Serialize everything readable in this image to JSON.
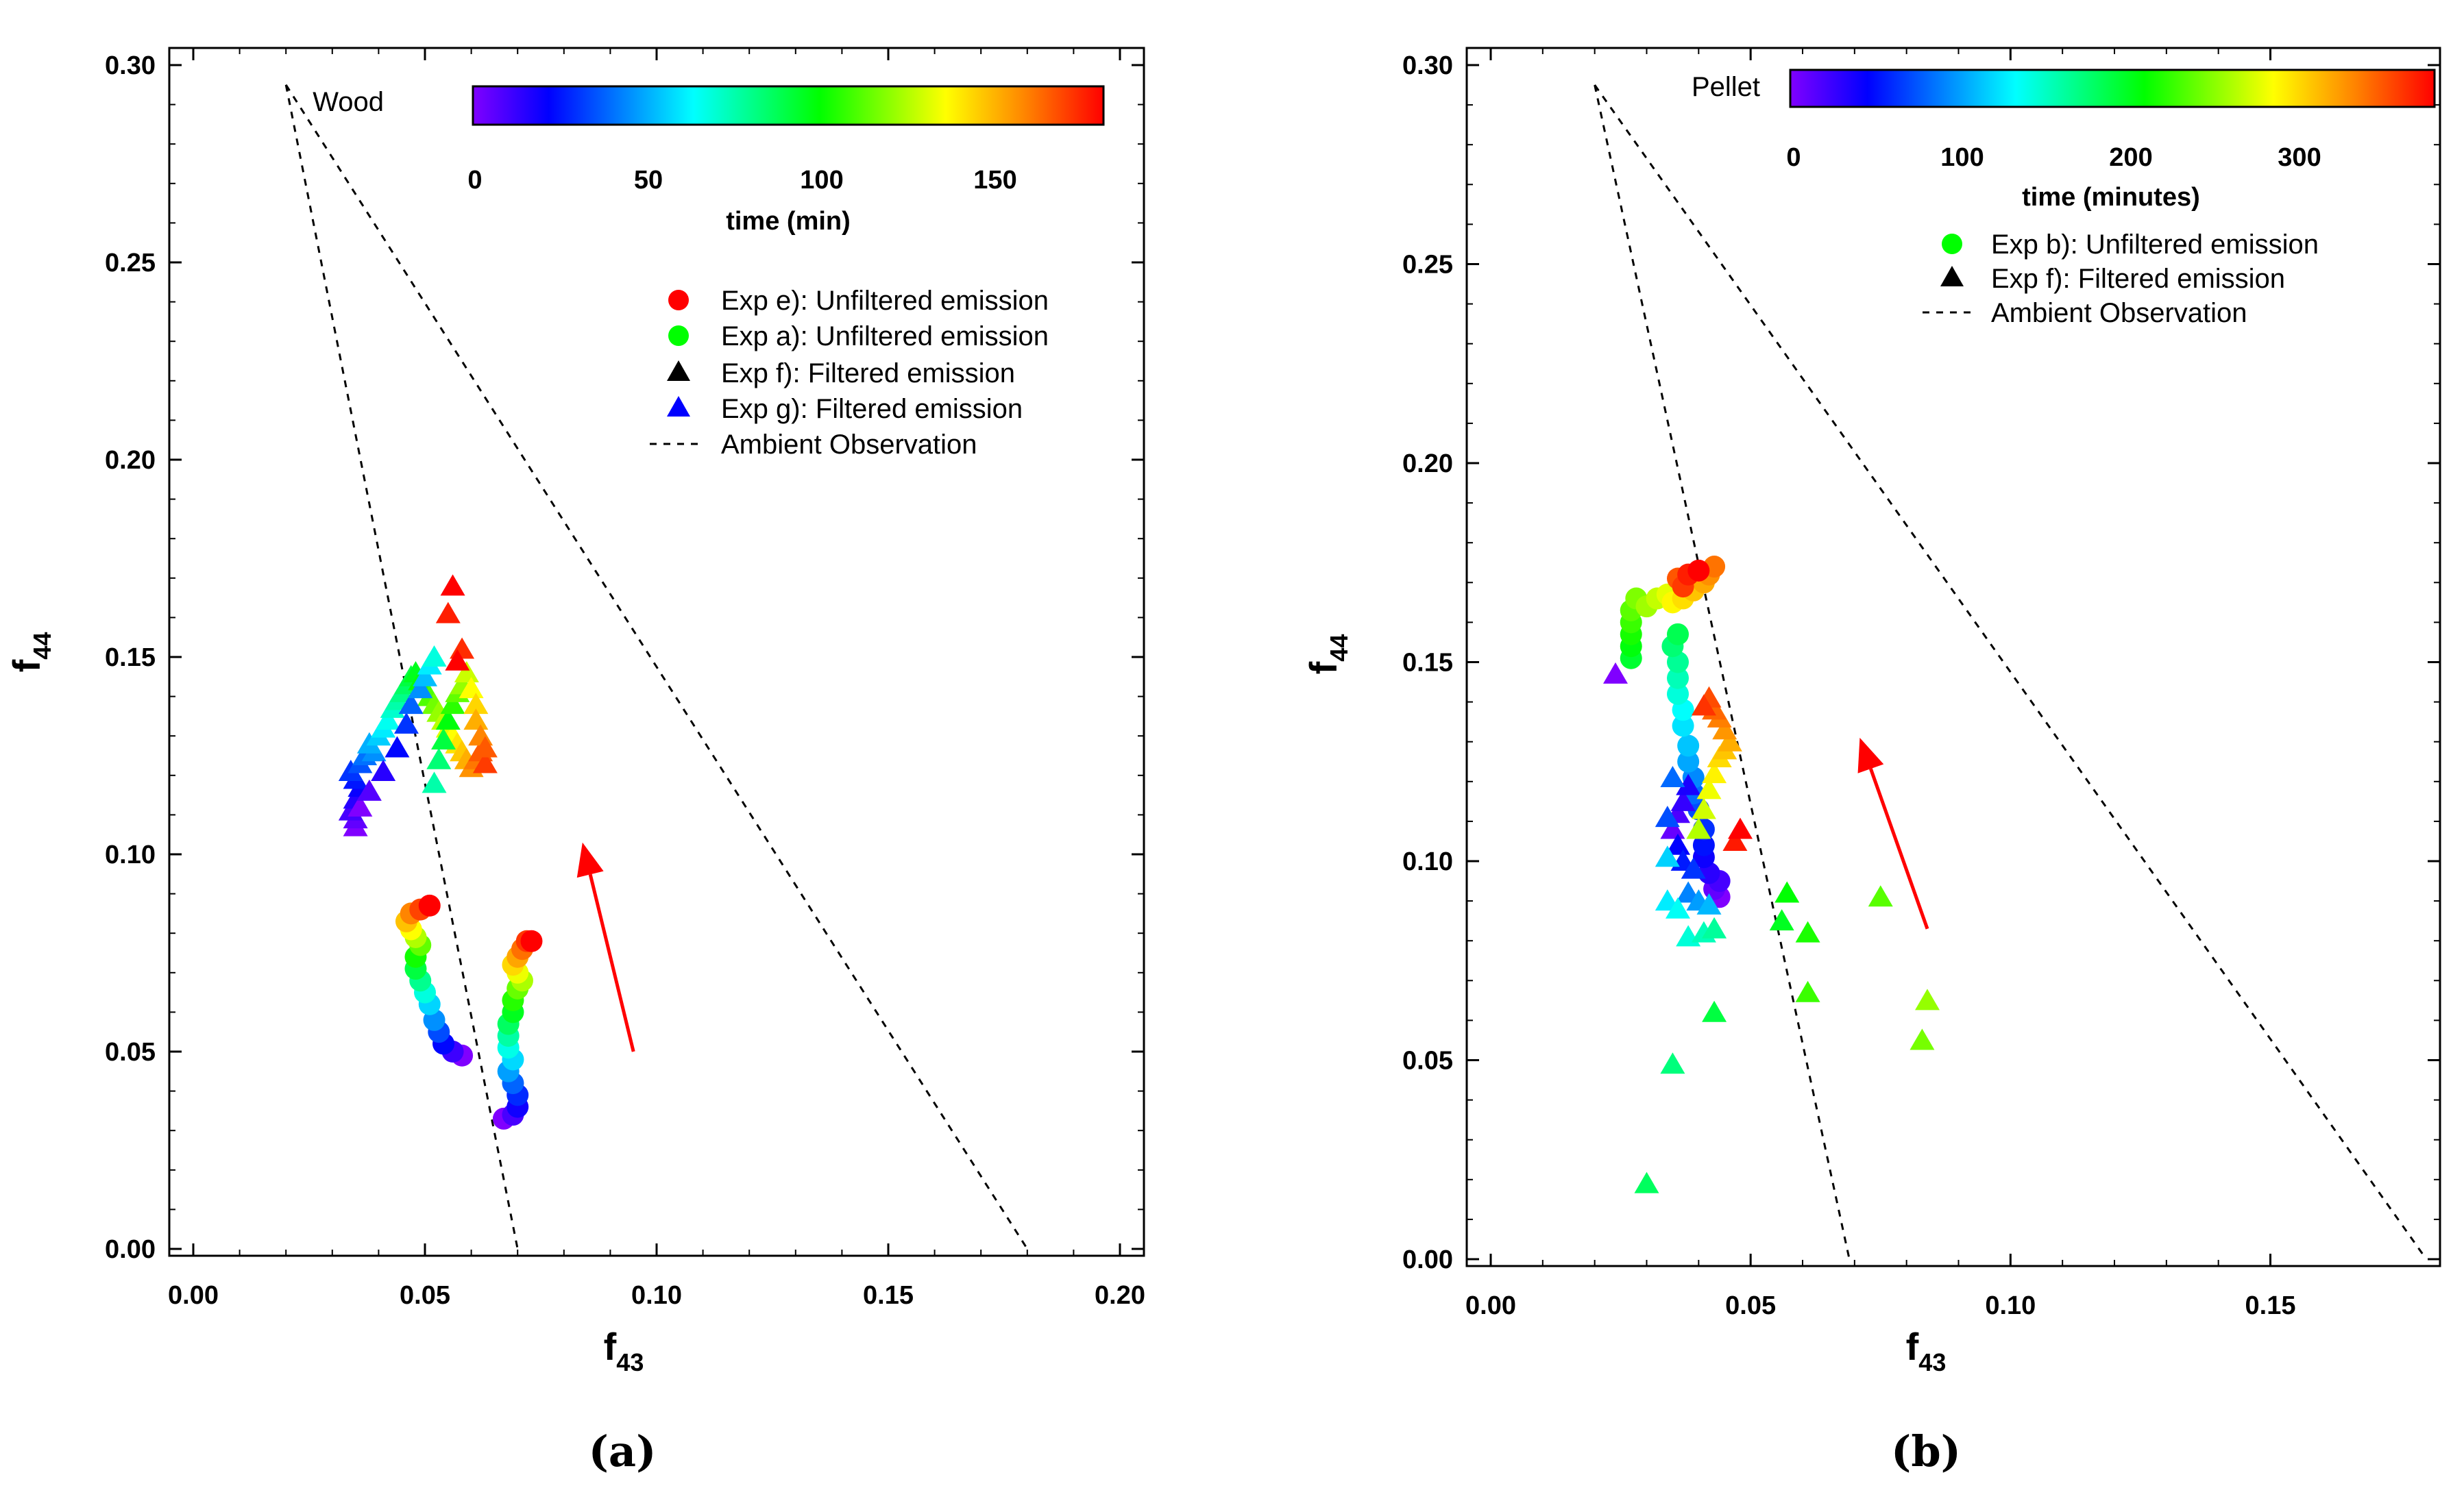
{
  "chart_data": [
    {
      "panel_label": "(a)",
      "type": "scatter",
      "name": "Wood",
      "xlabel": {
        "main": "f",
        "sub": "43"
      },
      "ylabel": {
        "main": "f",
        "sub": "44"
      },
      "xlim": [
        0.0,
        0.2
      ],
      "ylim": [
        0.0,
        0.3
      ],
      "xticks": [
        "0.00",
        "0.05",
        "0.10",
        "0.15",
        "0.20"
      ],
      "yticks": [
        "0.00",
        "0.05",
        "0.10",
        "0.15",
        "0.20",
        "0.25",
        "0.30"
      ],
      "colorbar": {
        "title": "Wood",
        "label": "time (min)",
        "range": [
          0,
          180
        ],
        "ticks": [
          "0",
          "50",
          "100",
          "150"
        ]
      },
      "legend": [
        {
          "label": "Exp e): Unfiltered emission",
          "marker": "circle",
          "color": "#ff0000"
        },
        {
          "label": "Exp a): Unfiltered emission",
          "marker": "circle",
          "color": "#00ff00"
        },
        {
          "label": "Exp f): Filtered emission",
          "marker": "triangle",
          "color": "#000000"
        },
        {
          "label": "Exp g): Filtered emission",
          "marker": "triangle",
          "color": "#0000ff"
        },
        {
          "label": "Ambient Observation",
          "marker": "dash",
          "color": "#000000"
        }
      ],
      "ambient_lines": [
        [
          [
            0.02,
            0.295
          ],
          [
            0.07,
            0.0
          ]
        ],
        [
          [
            0.02,
            0.295
          ],
          [
            0.18,
            0.0
          ]
        ]
      ],
      "arrow": {
        "from": [
          0.095,
          0.05
        ],
        "to": [
          0.084,
          0.103
        ],
        "color": "#ff0000"
      },
      "series": [
        {
          "name": "Exp e)",
          "marker": "circle",
          "points": [
            [
              0.058,
              0.049
            ],
            [
              0.056,
              0.05
            ],
            [
              0.054,
              0.052
            ],
            [
              0.053,
              0.055
            ],
            [
              0.052,
              0.058
            ],
            [
              0.051,
              0.062
            ],
            [
              0.05,
              0.065
            ],
            [
              0.049,
              0.068
            ],
            [
              0.048,
              0.071
            ],
            [
              0.048,
              0.074
            ],
            [
              0.049,
              0.077
            ],
            [
              0.048,
              0.079
            ],
            [
              0.047,
              0.081
            ],
            [
              0.046,
              0.083
            ],
            [
              0.047,
              0.085
            ],
            [
              0.049,
              0.086
            ],
            [
              0.051,
              0.087
            ]
          ]
        },
        {
          "name": "Exp a)",
          "marker": "circle",
          "points": [
            [
              0.067,
              0.033
            ],
            [
              0.069,
              0.034
            ],
            [
              0.07,
              0.036
            ],
            [
              0.07,
              0.039
            ],
            [
              0.069,
              0.042
            ],
            [
              0.068,
              0.045
            ],
            [
              0.069,
              0.048
            ],
            [
              0.068,
              0.051
            ],
            [
              0.068,
              0.054
            ],
            [
              0.068,
              0.057
            ],
            [
              0.069,
              0.06
            ],
            [
              0.069,
              0.063
            ],
            [
              0.07,
              0.066
            ],
            [
              0.071,
              0.068
            ],
            [
              0.07,
              0.07
            ],
            [
              0.069,
              0.072
            ],
            [
              0.07,
              0.074
            ],
            [
              0.071,
              0.076
            ],
            [
              0.072,
              0.078
            ],
            [
              0.073,
              0.078
            ]
          ]
        },
        {
          "name": "Exp f)",
          "marker": "triangle",
          "points": [
            [
              0.035,
              0.107
            ],
            [
              0.035,
              0.109
            ],
            [
              0.034,
              0.111
            ],
            [
              0.035,
              0.114
            ],
            [
              0.036,
              0.117
            ],
            [
              0.035,
              0.119
            ],
            [
              0.034,
              0.121
            ],
            [
              0.036,
              0.123
            ],
            [
              0.037,
              0.125
            ],
            [
              0.039,
              0.126
            ],
            [
              0.038,
              0.128
            ],
            [
              0.04,
              0.13
            ],
            [
              0.041,
              0.132
            ],
            [
              0.042,
              0.134
            ],
            [
              0.043,
              0.137
            ],
            [
              0.044,
              0.139
            ],
            [
              0.045,
              0.141
            ],
            [
              0.046,
              0.143
            ],
            [
              0.047,
              0.145
            ],
            [
              0.048,
              0.146
            ],
            [
              0.049,
              0.144
            ],
            [
              0.05,
              0.142
            ],
            [
              0.051,
              0.14
            ],
            [
              0.052,
              0.138
            ],
            [
              0.053,
              0.136
            ],
            [
              0.054,
              0.134
            ],
            [
              0.055,
              0.132
            ],
            [
              0.056,
              0.13
            ],
            [
              0.057,
              0.128
            ],
            [
              0.058,
              0.126
            ],
            [
              0.059,
              0.124
            ],
            [
              0.06,
              0.122
            ],
            [
              0.061,
              0.124
            ],
            [
              0.062,
              0.126
            ],
            [
              0.063,
              0.123
            ],
            [
              0.055,
              0.161
            ],
            [
              0.056,
              0.168
            ]
          ]
        },
        {
          "name": "Exp g)",
          "marker": "triangle",
          "points": [
            [
              0.036,
              0.112
            ],
            [
              0.038,
              0.116
            ],
            [
              0.041,
              0.121
            ],
            [
              0.044,
              0.127
            ],
            [
              0.046,
              0.133
            ],
            [
              0.047,
              0.138
            ],
            [
              0.049,
              0.142
            ],
            [
              0.05,
              0.145
            ],
            [
              0.051,
              0.148
            ],
            [
              0.052,
              0.15
            ],
            [
              0.052,
              0.118
            ],
            [
              0.053,
              0.124
            ],
            [
              0.054,
              0.129
            ],
            [
              0.055,
              0.134
            ],
            [
              0.056,
              0.138
            ],
            [
              0.057,
              0.141
            ],
            [
              0.058,
              0.143
            ],
            [
              0.059,
              0.146
            ],
            [
              0.06,
              0.142
            ],
            [
              0.061,
              0.138
            ],
            [
              0.061,
              0.134
            ],
            [
              0.062,
              0.13
            ],
            [
              0.063,
              0.127
            ],
            [
              0.058,
              0.152
            ],
            [
              0.057,
              0.149
            ]
          ]
        }
      ]
    },
    {
      "panel_label": "(b)",
      "type": "scatter",
      "name": "Pellet",
      "xlabel": {
        "main": "f",
        "sub": "43"
      },
      "ylabel": {
        "main": "f",
        "sub": "44"
      },
      "xlim": [
        0.0,
        0.18
      ],
      "ylim": [
        0.0,
        0.3
      ],
      "xticks": [
        "0.00",
        "0.05",
        "0.10",
        "0.15"
      ],
      "yticks": [
        "0.00",
        "0.05",
        "0.10",
        "0.15",
        "0.20",
        "0.25",
        "0.30"
      ],
      "colorbar": {
        "title": "Pellet",
        "label": "time (minutes)",
        "range": [
          0,
          380
        ],
        "ticks": [
          "0",
          "100",
          "200",
          "300"
        ]
      },
      "legend": [
        {
          "label": "Exp b): Unfiltered emission",
          "marker": "circle",
          "color": "#00ff00"
        },
        {
          "label": "Exp f): Filtered emission",
          "marker": "triangle",
          "color": "#000000"
        },
        {
          "label": "Ambient Observation",
          "marker": "dash",
          "color": "#000000"
        }
      ],
      "ambient_lines": [
        [
          [
            0.02,
            0.295
          ],
          [
            0.069,
            0.0
          ]
        ],
        [
          [
            0.02,
            0.295
          ],
          [
            0.18,
            0.0
          ]
        ]
      ],
      "arrow": {
        "from": [
          0.084,
          0.083
        ],
        "to": [
          0.071,
          0.131
        ],
        "color": "#ff0000"
      },
      "series": [
        {
          "name": "Exp b)",
          "marker": "circle",
          "points": [
            [
              0.044,
              0.091
            ],
            [
              0.043,
              0.093
            ],
            [
              0.044,
              0.095
            ],
            [
              0.042,
              0.097
            ],
            [
              0.041,
              0.101
            ],
            [
              0.041,
              0.104
            ],
            [
              0.041,
              0.108
            ],
            [
              0.04,
              0.113
            ],
            [
              0.039,
              0.117
            ],
            [
              0.039,
              0.121
            ],
            [
              0.038,
              0.125
            ],
            [
              0.038,
              0.129
            ],
            [
              0.037,
              0.134
            ],
            [
              0.037,
              0.138
            ],
            [
              0.036,
              0.142
            ],
            [
              0.036,
              0.146
            ],
            [
              0.036,
              0.15
            ],
            [
              0.035,
              0.154
            ],
            [
              0.036,
              0.157
            ],
            [
              0.027,
              0.151
            ],
            [
              0.027,
              0.154
            ],
            [
              0.027,
              0.157
            ],
            [
              0.027,
              0.16
            ],
            [
              0.027,
              0.163
            ],
            [
              0.028,
              0.166
            ],
            [
              0.03,
              0.164
            ],
            [
              0.032,
              0.166
            ],
            [
              0.034,
              0.167
            ],
            [
              0.035,
              0.165
            ],
            [
              0.037,
              0.166
            ],
            [
              0.039,
              0.168
            ],
            [
              0.041,
              0.17
            ],
            [
              0.042,
              0.172
            ],
            [
              0.043,
              0.174
            ],
            [
              0.036,
              0.171
            ],
            [
              0.037,
              0.169
            ],
            [
              0.038,
              0.172
            ],
            [
              0.04,
              0.173
            ]
          ]
        },
        {
          "name": "Exp f)",
          "marker": "triangle",
          "points": [
            [
              0.024,
              0.147
            ],
            [
              0.035,
              0.108
            ],
            [
              0.036,
              0.112
            ],
            [
              0.037,
              0.115
            ],
            [
              0.038,
              0.119
            ],
            [
              0.036,
              0.104
            ],
            [
              0.037,
              0.1
            ],
            [
              0.039,
              0.098
            ],
            [
              0.034,
              0.111
            ],
            [
              0.035,
              0.121
            ],
            [
              0.038,
              0.092
            ],
            [
              0.04,
              0.09
            ],
            [
              0.042,
              0.089
            ],
            [
              0.034,
              0.101
            ],
            [
              0.034,
              0.09
            ],
            [
              0.036,
              0.088
            ],
            [
              0.038,
              0.081
            ],
            [
              0.041,
              0.082
            ],
            [
              0.043,
              0.083
            ],
            [
              0.035,
              0.049
            ],
            [
              0.03,
              0.019
            ],
            [
              0.043,
              0.062
            ],
            [
              0.056,
              0.085
            ],
            [
              0.057,
              0.092
            ],
            [
              0.061,
              0.082
            ],
            [
              0.061,
              0.067
            ],
            [
              0.075,
              0.091
            ],
            [
              0.083,
              0.055
            ],
            [
              0.084,
              0.065
            ],
            [
              0.04,
              0.108
            ],
            [
              0.041,
              0.113
            ],
            [
              0.042,
              0.118
            ],
            [
              0.043,
              0.122
            ],
            [
              0.044,
              0.126
            ],
            [
              0.045,
              0.128
            ],
            [
              0.046,
              0.13
            ],
            [
              0.045,
              0.133
            ],
            [
              0.044,
              0.136
            ],
            [
              0.043,
              0.138
            ],
            [
              0.042,
              0.141
            ],
            [
              0.041,
              0.139
            ],
            [
              0.047,
              0.105
            ],
            [
              0.048,
              0.108
            ]
          ]
        }
      ]
    }
  ]
}
